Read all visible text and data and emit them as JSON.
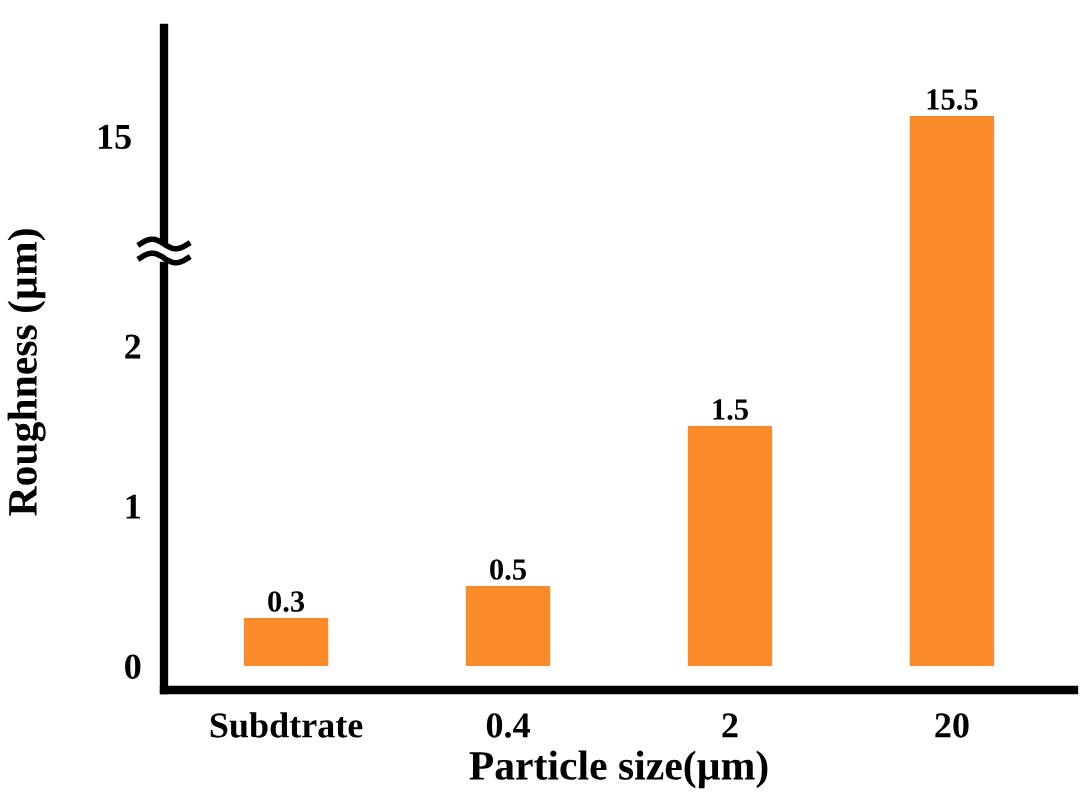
{
  "chart_data": [
    {
      "type": "bar",
      "values": [
        null,
        null,
        null,
        15.5
      ],
      "color": "#fb8a2a",
      "data_labels": true,
      "annotations": [
        "15"
      ]
    },
    {
      "type": "bar",
      "xlabel": "Particle size(µm)",
      "ylabel": "Roughness (µm)",
      "categories": [
        "Subdtrate",
        "0.4",
        "2",
        "20"
      ],
      "values": [
        0.3,
        0.5,
        1.5,
        null
      ],
      "color": "#fb8a2a",
      "ylim": [
        -0.15,
        2.5
      ],
      "yticks": [
        0,
        1,
        2
      ],
      "data_labels": true,
      "grid": false,
      "legend": false
    }
  ]
}
